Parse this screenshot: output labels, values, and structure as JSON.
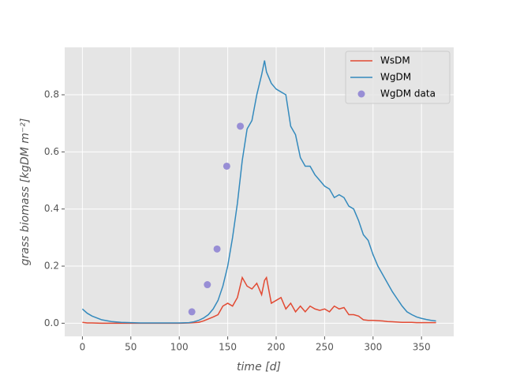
{
  "chart_data": {
    "type": "line",
    "xlabel": "time [d]",
    "ylabel": "grass biomass [kgDM m⁻²]",
    "x": [
      0,
      5,
      10,
      20,
      30,
      40,
      50,
      60,
      70,
      80,
      90,
      100,
      110,
      115,
      120,
      125,
      130,
      135,
      140,
      145,
      150,
      155,
      160,
      165,
      170,
      175,
      180,
      185,
      188,
      190,
      195,
      200,
      205,
      210,
      215,
      220,
      225,
      230,
      235,
      240,
      245,
      250,
      255,
      260,
      265,
      270,
      275,
      280,
      285,
      290,
      295,
      300,
      305,
      310,
      315,
      320,
      325,
      330,
      335,
      340,
      345,
      350,
      355,
      360,
      365
    ],
    "series": [
      {
        "name": "WsDM",
        "color": "#E24A33",
        "kind": "line",
        "values": [
          0.003,
          0.001,
          0.001,
          0.0,
          0.0,
          0.0,
          0.0,
          0.0,
          0.0,
          0.0,
          0.0,
          0.0,
          0.001,
          0.002,
          0.003,
          0.008,
          0.015,
          0.022,
          0.03,
          0.06,
          0.07,
          0.06,
          0.09,
          0.16,
          0.13,
          0.12,
          0.14,
          0.1,
          0.15,
          0.16,
          0.07,
          0.08,
          0.09,
          0.05,
          0.07,
          0.04,
          0.06,
          0.04,
          0.06,
          0.05,
          0.045,
          0.05,
          0.04,
          0.06,
          0.05,
          0.055,
          0.03,
          0.03,
          0.025,
          0.012,
          0.01,
          0.01,
          0.009,
          0.008,
          0.006,
          0.005,
          0.004,
          0.003,
          0.003,
          0.003,
          0.002,
          0.002,
          0.002,
          0.002,
          0.002
        ]
      },
      {
        "name": "WgDM",
        "color": "#348ABD",
        "kind": "line",
        "values": [
          0.05,
          0.035,
          0.025,
          0.012,
          0.006,
          0.003,
          0.002,
          0.001,
          0.001,
          0.001,
          0.001,
          0.001,
          0.002,
          0.005,
          0.01,
          0.018,
          0.03,
          0.05,
          0.08,
          0.13,
          0.2,
          0.3,
          0.42,
          0.57,
          0.68,
          0.71,
          0.8,
          0.87,
          0.92,
          0.88,
          0.84,
          0.82,
          0.81,
          0.8,
          0.69,
          0.66,
          0.58,
          0.55,
          0.55,
          0.52,
          0.5,
          0.48,
          0.47,
          0.44,
          0.45,
          0.44,
          0.41,
          0.4,
          0.36,
          0.31,
          0.29,
          0.24,
          0.2,
          0.17,
          0.14,
          0.11,
          0.085,
          0.06,
          0.04,
          0.03,
          0.022,
          0.017,
          0.013,
          0.01,
          0.008
        ]
      },
      {
        "name": "WgDM data",
        "color": "#988ED5",
        "kind": "scatter",
        "x": [
          113,
          129,
          139,
          149,
          163
        ],
        "values": [
          0.04,
          0.135,
          0.26,
          0.55,
          0.69
        ]
      }
    ],
    "xlim": [
      -18.25,
      383.25
    ],
    "xticks": [
      0,
      50,
      100,
      150,
      200,
      250,
      300,
      350
    ],
    "ylim": [
      -0.046,
      0.966
    ],
    "yticks": [
      0.0,
      0.2,
      0.4,
      0.6,
      0.8
    ],
    "grid": true,
    "legend": "upper right"
  }
}
